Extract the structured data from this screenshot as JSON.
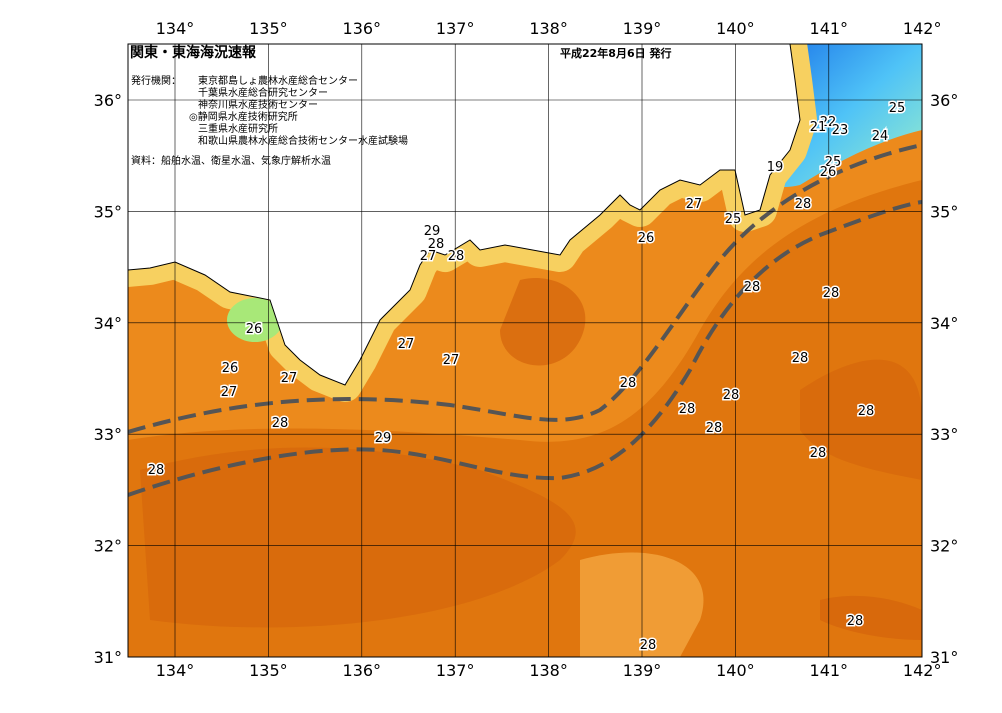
{
  "header": {
    "title": "関東・東海海況速報",
    "date": "平成22年8月6日 発行"
  },
  "publishers": {
    "label": "発行機関：",
    "list": [
      "東京都島しょ農林水産総合センター",
      "千葉県水産総合研究センター",
      "神奈川県水産技術センター",
      "◎静岡県水産技術研究所",
      "三重県水産研究所",
      "和歌山県農林水産総合技術センター水産試験場"
    ]
  },
  "source": "資料：船舶水温、衛星水温、気象庁解析水温",
  "lon_ticks": [
    {
      "value": 134,
      "label": "134°"
    },
    {
      "value": 135,
      "label": "135°"
    },
    {
      "value": 136,
      "label": "136°"
    },
    {
      "value": 137,
      "label": "137°"
    },
    {
      "value": 138,
      "label": "138°"
    },
    {
      "value": 139,
      "label": "139°"
    },
    {
      "value": 140,
      "label": "140°"
    },
    {
      "value": 141,
      "label": "141°"
    },
    {
      "value": 142,
      "label": "142°"
    }
  ],
  "lat_ticks": [
    {
      "value": 31,
      "label": "31°"
    },
    {
      "value": 32,
      "label": "32°"
    },
    {
      "value": 33,
      "label": "33°"
    },
    {
      "value": 34,
      "label": "34°"
    },
    {
      "value": 35,
      "label": "35°"
    },
    {
      "value": 36,
      "label": "36°"
    }
  ],
  "contour_labels": [
    "25",
    "22",
    "21",
    "23",
    "24",
    "19",
    "25",
    "26",
    "28",
    "27",
    "25",
    "26",
    "29",
    "28",
    "27",
    "28",
    "28",
    "28",
    "26",
    "27",
    "27",
    "28",
    "26",
    "27",
    "27",
    "28",
    "28",
    "28",
    "28",
    "28",
    "29",
    "28",
    "28",
    "28",
    "28",
    "28"
  ]
}
